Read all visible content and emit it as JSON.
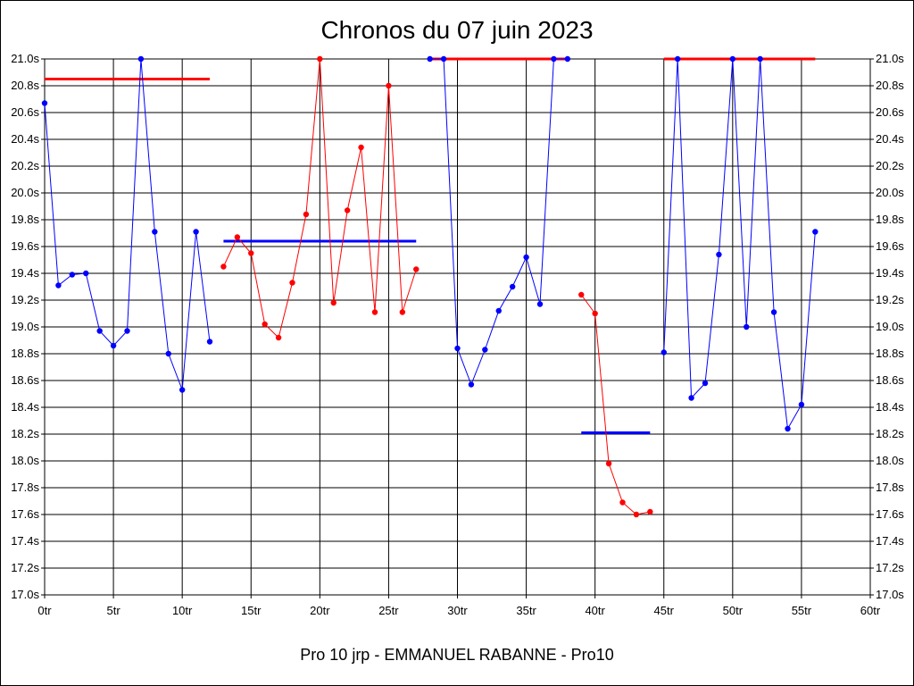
{
  "chart_data": {
    "type": "line",
    "title": "Chronos du 07 juin 2023",
    "footer": "Pro 10 jrp - EMMANUEL RABANNE - Pro10",
    "xlim": [
      0,
      60
    ],
    "ylim": [
      17.0,
      21.0
    ],
    "x_ticks": [
      {
        "value": 0,
        "label": "0tr"
      },
      {
        "value": 5,
        "label": "5tr"
      },
      {
        "value": 10,
        "label": "10tr"
      },
      {
        "value": 15,
        "label": "15tr"
      },
      {
        "value": 20,
        "label": "20tr"
      },
      {
        "value": 25,
        "label": "25tr"
      },
      {
        "value": 30,
        "label": "30tr"
      },
      {
        "value": 35,
        "label": "35tr"
      },
      {
        "value": 40,
        "label": "40tr"
      },
      {
        "value": 45,
        "label": "45tr"
      },
      {
        "value": 50,
        "label": "50tr"
      },
      {
        "value": 55,
        "label": "55tr"
      },
      {
        "value": 60,
        "label": "60tr"
      }
    ],
    "y_ticks": [
      {
        "value": 21.0,
        "label": "21.0s"
      },
      {
        "value": 20.8,
        "label": "20.8s"
      },
      {
        "value": 20.6,
        "label": "20.6s"
      },
      {
        "value": 20.4,
        "label": "20.4s"
      },
      {
        "value": 20.2,
        "label": "20.2s"
      },
      {
        "value": 20.0,
        "label": "20.0s"
      },
      {
        "value": 19.8,
        "label": "19.8s"
      },
      {
        "value": 19.6,
        "label": "19.6s"
      },
      {
        "value": 19.4,
        "label": "19.4s"
      },
      {
        "value": 19.2,
        "label": "19.2s"
      },
      {
        "value": 19.0,
        "label": "19.0s"
      },
      {
        "value": 18.8,
        "label": "18.8s"
      },
      {
        "value": 18.6,
        "label": "18.6s"
      },
      {
        "value": 18.4,
        "label": "18.4s"
      },
      {
        "value": 18.2,
        "label": "18.2s"
      },
      {
        "value": 18.0,
        "label": "18.0s"
      },
      {
        "value": 17.8,
        "label": "17.8s"
      },
      {
        "value": 17.6,
        "label": "17.6s"
      },
      {
        "value": 17.4,
        "label": "17.4s"
      },
      {
        "value": 17.2,
        "label": "17.2s"
      },
      {
        "value": 17.0,
        "label": "17.0s"
      }
    ],
    "grid": true,
    "series": [
      {
        "color": "#0000ff",
        "x": [
          0,
          1,
          2,
          3,
          4,
          5,
          6,
          7,
          8,
          9,
          10,
          11,
          12
        ],
        "y": [
          20.67,
          19.31,
          19.39,
          19.4,
          18.97,
          18.86,
          18.97,
          21.0,
          19.71,
          18.8,
          18.53,
          19.71,
          18.89
        ]
      },
      {
        "color": "#ff0000",
        "x": [
          13,
          14,
          15,
          16,
          17,
          18,
          19,
          20,
          21,
          22,
          23,
          24,
          25,
          26,
          27
        ],
        "y": [
          19.45,
          19.67,
          19.55,
          19.02,
          18.92,
          19.33,
          19.84,
          21.0,
          19.18,
          19.87,
          20.34,
          19.11,
          20.8,
          19.11,
          19.43
        ]
      },
      {
        "color": "#0000ff",
        "x": [
          28,
          29,
          30,
          31,
          32,
          33,
          34,
          35,
          36,
          37,
          38
        ],
        "y": [
          21.0,
          21.0,
          18.84,
          18.57,
          18.83,
          19.12,
          19.3,
          19.52,
          19.17,
          21.0,
          21.0
        ]
      },
      {
        "color": "#ff0000",
        "x": [
          39,
          40,
          41,
          42,
          43,
          44
        ],
        "y": [
          19.24,
          19.1,
          17.98,
          17.69,
          17.6,
          17.62
        ]
      },
      {
        "color": "#0000ff",
        "x": [
          45,
          46,
          47,
          48,
          49,
          50,
          51,
          52,
          53,
          54,
          55,
          56
        ],
        "y": [
          18.81,
          21.0,
          18.47,
          18.58,
          19.54,
          21.0,
          19.0,
          21.0,
          19.11,
          18.24,
          18.42,
          19.71
        ]
      }
    ],
    "average_lines": [
      {
        "x0": 0,
        "x1": 12,
        "y": 20.85,
        "color": "#ff0000"
      },
      {
        "x0": 13,
        "x1": 27,
        "y": 19.64,
        "color": "#0000ff"
      },
      {
        "x0": 28,
        "x1": 38,
        "y": 21.0,
        "color": "#ff0000"
      },
      {
        "x0": 39,
        "x1": 44,
        "y": 18.21,
        "color": "#0000ff"
      },
      {
        "x0": 45,
        "x1": 56,
        "y": 21.0,
        "color": "#ff0000"
      }
    ]
  }
}
